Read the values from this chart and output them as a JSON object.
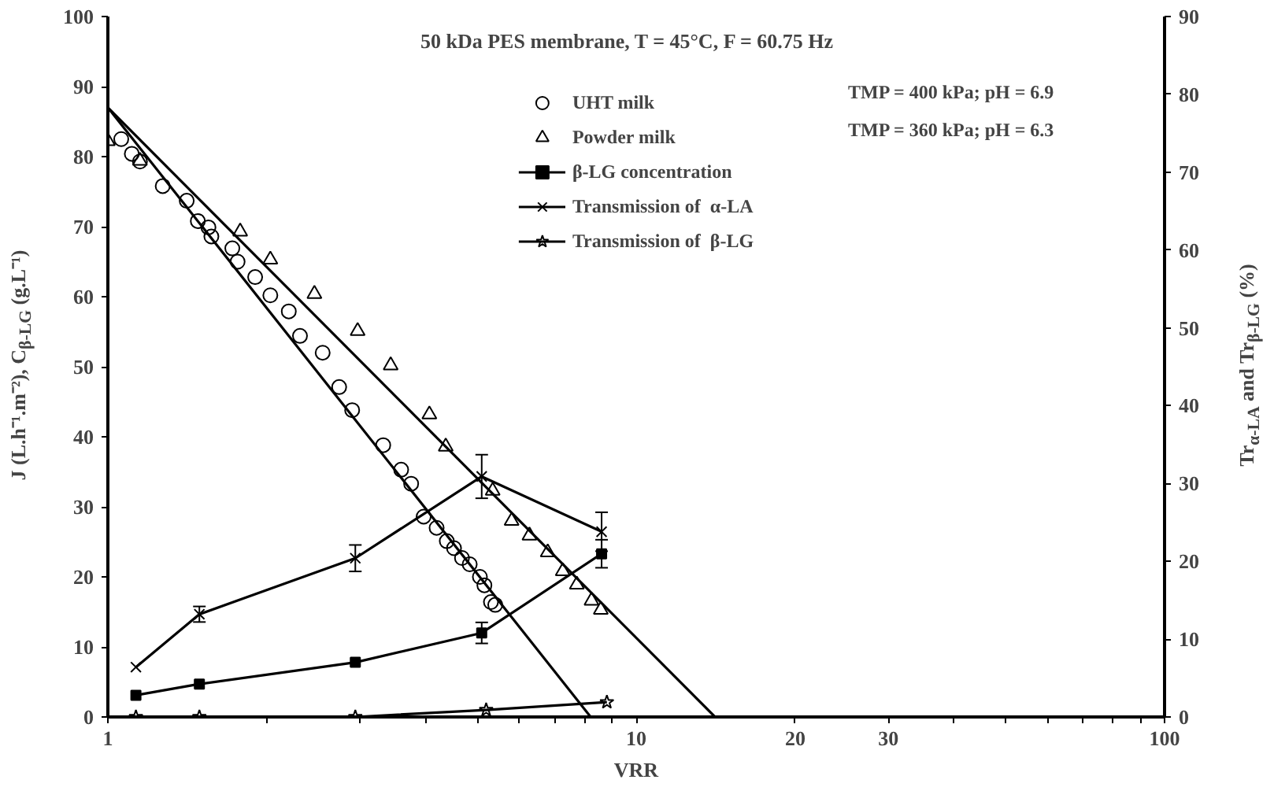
{
  "chart_data": {
    "type": "scatter",
    "title": "50 kDa PES membrane, T = 45°C, F = 60.75 Hz",
    "xlabel": "VRR",
    "ylabel": "J (L.h⁻¹.m⁻²), C$_{β-LG}$ (g.L⁻¹)",
    "y2label": "Tr$_{α-LA}$ and Tr$_{β-LG}$ (%)",
    "log": "x",
    "grid": false,
    "legend": "top",
    "xlim": [
      1,
      100
    ],
    "xticks": [
      1,
      {
        "value": 2,
        "label": null
      },
      {
        "value": 3,
        "label": null
      },
      {
        "value": 4,
        "label": null
      },
      {
        "value": 5,
        "label": null
      },
      {
        "value": 6,
        "label": null
      },
      {
        "value": 7,
        "label": null
      },
      {
        "value": 8,
        "label": null
      },
      {
        "value": 9,
        "label": null
      },
      10,
      20,
      30,
      {
        "value": 40,
        "label": null
      },
      {
        "value": 50,
        "label": null
      },
      {
        "value": 60,
        "label": null
      },
      {
        "value": 70,
        "label": null
      },
      {
        "value": 80,
        "label": null
      },
      {
        "value": 90,
        "label": null
      },
      100
    ],
    "ylim": [
      0,
      100
    ],
    "yticks": [
      0,
      10,
      20,
      30,
      40,
      50,
      60,
      70,
      80,
      90,
      100
    ],
    "y2lim": [
      0,
      90
    ],
    "y2ticks": [
      0,
      10,
      20,
      30,
      40,
      50,
      60,
      70,
      80,
      90
    ],
    "annotations": [
      "TMP = 400 kPa; pH = 6.9",
      "TMP = 360 kPa; pH = 6.3"
    ],
    "series": [
      {
        "name": "UHT milk",
        "marker": "circle",
        "color": "#000000",
        "x": [
          1.06,
          1.11,
          1.15,
          1.27,
          1.41,
          1.48,
          1.55,
          1.57,
          1.72,
          1.76,
          1.9,
          2.03,
          2.2,
          2.31,
          2.55,
          2.74,
          2.9,
          3.32,
          3.59,
          3.75,
          3.96,
          4.19,
          4.38,
          4.52,
          4.68,
          4.84,
          5.06,
          5.16,
          5.31,
          5.41
        ],
        "values": [
          82.5,
          80.4,
          79.3,
          75.8,
          73.7,
          70.8,
          69.9,
          68.6,
          66.9,
          65.0,
          62.8,
          60.2,
          57.9,
          54.4,
          52.0,
          47.1,
          43.8,
          38.8,
          35.3,
          33.3,
          28.6,
          27.0,
          25.1,
          24.1,
          22.7,
          21.8,
          20.0,
          18.8,
          16.4,
          16.0
        ]
      },
      {
        "name": "Powder milk",
        "marker": "triangle",
        "color": "#000000",
        "x": [
          1.0,
          1.15,
          1.78,
          2.03,
          2.46,
          2.97,
          3.43,
          4.06,
          4.36,
          5.35,
          5.81,
          6.28,
          6.8,
          7.26,
          7.72,
          8.23,
          8.57
        ],
        "values": [
          82.2,
          79.4,
          69.3,
          65.3,
          60.4,
          55.1,
          50.2,
          43.2,
          38.6,
          32.3,
          28.0,
          25.9,
          23.5,
          20.8,
          18.9,
          16.6,
          15.3
        ]
      },
      {
        "type": "line",
        "marker": "none",
        "color": "#000000",
        "x": [
          1,
          8.2
        ],
        "values": [
          87,
          0
        ]
      },
      {
        "type": "line",
        "marker": "none",
        "color": "#000000",
        "x": [
          1,
          14.1
        ],
        "values": [
          87,
          0
        ]
      },
      {
        "name": "β-LG concentration",
        "type": "line",
        "marker": "square",
        "color": "#000000",
        "x": [
          1.13,
          1.49,
          2.94,
          5.1,
          8.6
        ],
        "values": [
          3.1,
          4.7,
          7.8,
          12.0,
          23.3
        ],
        "errors": [
          null,
          null,
          null,
          1.5,
          2.0
        ]
      },
      {
        "name": "Transmission of  α-LA",
        "type": "line",
        "marker": "cross",
        "color": "#000000",
        "axis": "y2",
        "x": [
          1.13,
          1.49,
          2.94,
          5.1,
          8.6
        ],
        "values": [
          6.4,
          13.2,
          20.4,
          30.9,
          23.8
        ],
        "errors": [
          null,
          1.0,
          1.7,
          2.8,
          2.5
        ]
      },
      {
        "name": "Transmission of  β-LG",
        "type": "line",
        "marker": "star",
        "color": "#000000",
        "axis": "y2",
        "x": [
          1.13,
          1.49,
          2.94,
          5.2,
          8.8
        ],
        "values": [
          0,
          0,
          0,
          0.9,
          1.9
        ]
      }
    ]
  }
}
